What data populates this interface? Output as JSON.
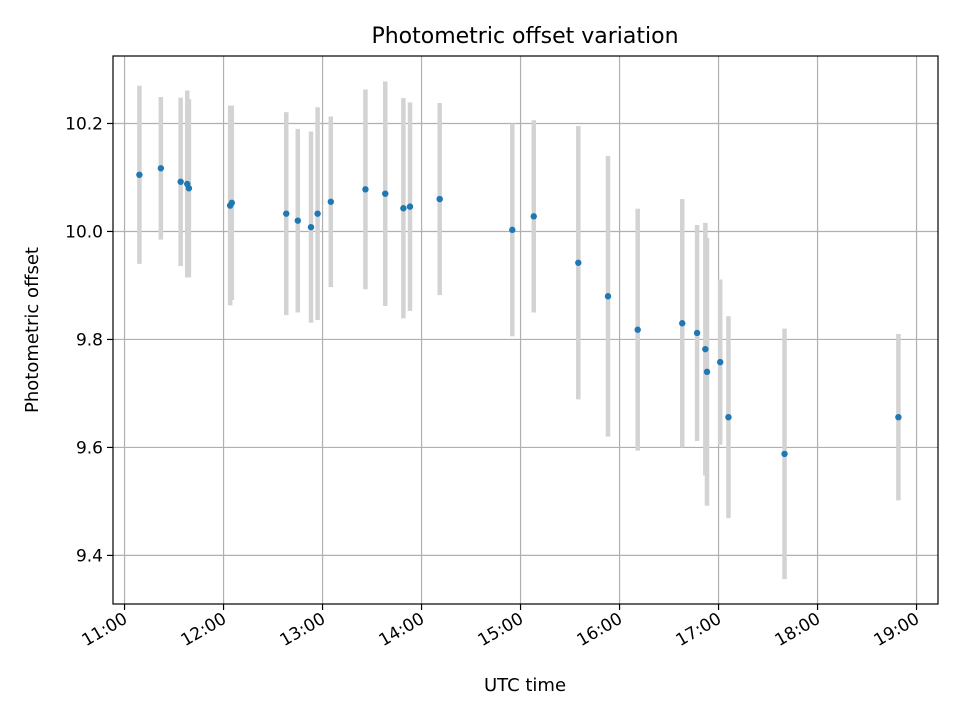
{
  "chart_data": {
    "type": "scatter",
    "title": "Photometric offset variation",
    "xlabel": "UTC time",
    "ylabel": "Photometric offset",
    "xlim": [
      "10:53",
      "19:13"
    ],
    "ylim": [
      9.31,
      10.325
    ],
    "x_ticks": [
      "11:00",
      "12:00",
      "13:00",
      "14:00",
      "15:00",
      "16:00",
      "17:00",
      "18:00",
      "19:00"
    ],
    "y_ticks": [
      9.4,
      9.6,
      9.8,
      10.0,
      10.2
    ],
    "y_tick_labels": [
      "9.4",
      "9.6",
      "9.8",
      "10.0",
      "10.2"
    ],
    "grid": true,
    "colors": {
      "point": "#1f77b4",
      "errorbar": "#d3d3d3",
      "grid": "#b0b0b0"
    },
    "points": [
      {
        "x": "11:09",
        "y": 10.105,
        "yerr": 0.165
      },
      {
        "x": "11:22",
        "y": 10.117,
        "yerr": 0.132
      },
      {
        "x": "11:34",
        "y": 10.092,
        "yerr": 0.156
      },
      {
        "x": "11:38",
        "y": 10.088,
        "yerr": 0.173
      },
      {
        "x": "11:39",
        "y": 10.08,
        "yerr": 0.165
      },
      {
        "x": "12:04",
        "y": 10.048,
        "yerr": 0.185
      },
      {
        "x": "12:05",
        "y": 10.053,
        "yerr": 0.18
      },
      {
        "x": "12:38",
        "y": 10.033,
        "yerr": 0.188
      },
      {
        "x": "12:45",
        "y": 10.02,
        "yerr": 0.17
      },
      {
        "x": "12:53",
        "y": 10.008,
        "yerr": 0.177
      },
      {
        "x": "12:57",
        "y": 10.033,
        "yerr": 0.197
      },
      {
        "x": "13:05",
        "y": 10.055,
        "yerr": 0.158
      },
      {
        "x": "13:26",
        "y": 10.078,
        "yerr": 0.185
      },
      {
        "x": "13:38",
        "y": 10.07,
        "yerr": 0.208
      },
      {
        "x": "13:49",
        "y": 10.043,
        "yerr": 0.204
      },
      {
        "x": "13:53",
        "y": 10.046,
        "yerr": 0.193
      },
      {
        "x": "14:11",
        "y": 10.06,
        "yerr": 0.178
      },
      {
        "x": "14:55",
        "y": 10.003,
        "yerr": 0.197
      },
      {
        "x": "15:08",
        "y": 10.028,
        "yerr": 0.178
      },
      {
        "x": "15:35",
        "y": 9.942,
        "yerr": 0.253
      },
      {
        "x": "15:53",
        "y": 9.88,
        "yerr": 0.26
      },
      {
        "x": "16:11",
        "y": 9.818,
        "yerr": 0.224
      },
      {
        "x": "16:38",
        "y": 9.83,
        "yerr": 0.23
      },
      {
        "x": "16:47",
        "y": 9.812,
        "yerr": 0.2
      },
      {
        "x": "16:52",
        "y": 9.782,
        "yerr": 0.234
      },
      {
        "x": "16:53",
        "y": 9.74,
        "yerr": 0.248
      },
      {
        "x": "17:01",
        "y": 9.758,
        "yerr": 0.153
      },
      {
        "x": "17:06",
        "y": 9.656,
        "yerr": 0.187
      },
      {
        "x": "17:40",
        "y": 9.588,
        "yerr": 0.232
      },
      {
        "x": "18:49",
        "y": 9.656,
        "yerr": 0.154
      }
    ]
  }
}
